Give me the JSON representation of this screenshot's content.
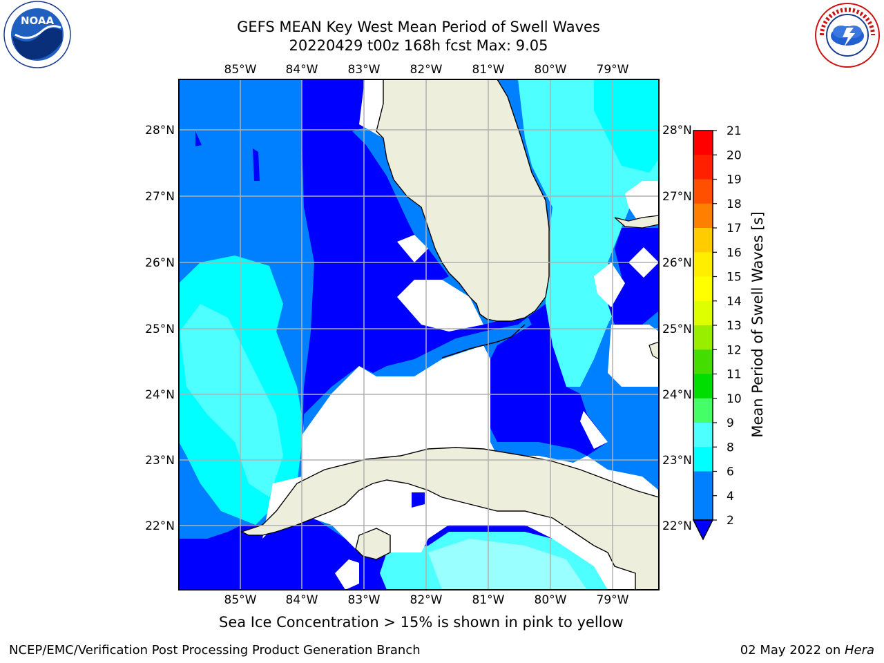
{
  "title": {
    "line1": "GEFS MEAN Key West Mean Period of Swell Waves",
    "line2": "20220429 t00z 168h fcst   Max: 9.05"
  },
  "map": {
    "lon_labels": [
      "85°W",
      "84°W",
      "83°W",
      "82°W",
      "81°W",
      "80°W",
      "79°W"
    ],
    "lat_labels": [
      "28°N",
      "27°N",
      "26°N",
      "25°N",
      "24°N",
      "23°N",
      "22°N"
    ],
    "land_color": "#eeeedd",
    "ocean_levels": {
      "2-4": "#0000ff",
      "4-6": "#0080ff",
      "6-8": "#00ffff",
      "8-9": "#4dffff"
    }
  },
  "colorbar": {
    "title": "Mean Period of Swell Waves [s]",
    "tick_labels": [
      "21",
      "20",
      "19",
      "18",
      "17",
      "16",
      "15",
      "14",
      "13",
      "12",
      "11",
      "10",
      "9",
      "8",
      "6",
      "4",
      "2"
    ],
    "colors": [
      "#ff0000",
      "#ff2000",
      "#ff5000",
      "#ff8000",
      "#ffa000",
      "#ffcc00",
      "#ffee00",
      "#ffff00",
      "#ddff00",
      "#99ee00",
      "#44dd00",
      "#00dd00",
      "#44ff66",
      "#99ffff",
      "#4dffff",
      "#00ffff",
      "#0080ff",
      "#0000ff"
    ]
  },
  "note": "Sea Ice Concentration > 15% is shown in pink to yellow",
  "footer": {
    "left": "NCEP/EMC/Verification Post Processing Product Generation Branch",
    "right_prefix": "02 May 2022 on ",
    "right_host": "Hera"
  },
  "logos": {
    "noaa_text": "NOAA",
    "nws_text": "NATIONAL WEATHER SERVICE"
  }
}
